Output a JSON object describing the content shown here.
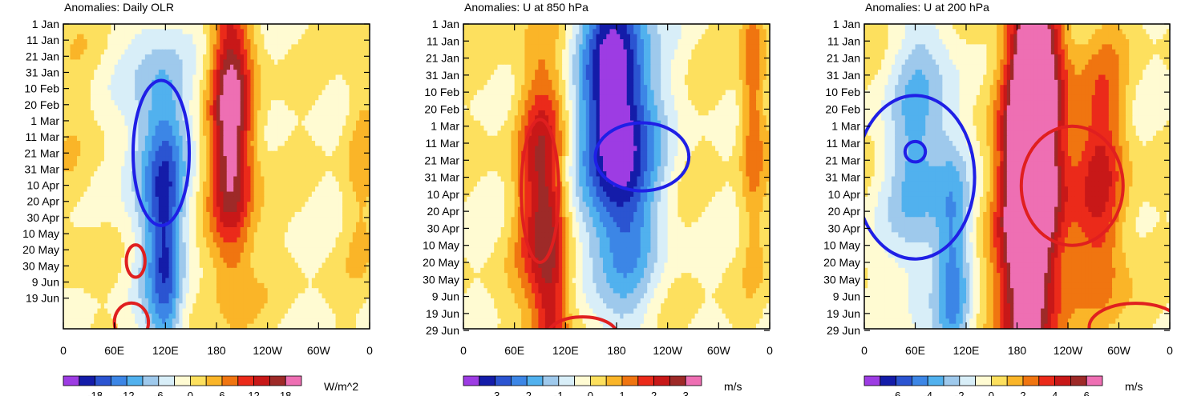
{
  "chart_data": [
    {
      "type": "heatmap",
      "title": "Anomalies: Daily OLR",
      "units": "W/m^2",
      "y_ticks": [
        "1 Jan",
        "11 Jan",
        "21 Jan",
        "31 Jan",
        "10 Feb",
        "20 Feb",
        "1 Mar",
        "11 Mar",
        "21 Mar",
        "31 Mar",
        "10 Apr",
        "20 Apr",
        "30 Apr",
        "10 May",
        "20 May",
        "30 May",
        "9 Jun",
        "19 Jun"
      ],
      "x_ticks": [
        "0",
        "60E",
        "120E",
        "180",
        "120W",
        "60W",
        "0"
      ],
      "xlim": [
        0,
        360
      ],
      "ylim_days": [
        0,
        189
      ],
      "colorbar_labels": [
        "-18",
        "-12",
        "-6",
        "0",
        "6",
        "12",
        "18"
      ],
      "colorbar_levels": [
        -21,
        -18,
        -15,
        -12,
        -9,
        -6,
        -3,
        0,
        3,
        6,
        9,
        12,
        15,
        18,
        21
      ],
      "features": [
        {
          "lon": 200,
          "day": 80,
          "width": 28,
          "value": 13
        },
        {
          "lon": 195,
          "day": 45,
          "width": 20,
          "value": 9
        },
        {
          "lon": 110,
          "day": 80,
          "width": 38,
          "value": -11
        },
        {
          "lon": 120,
          "day": 155,
          "width": 20,
          "value": -12
        },
        {
          "lon": 350,
          "day": 70,
          "width": 20,
          "value": 4
        },
        {
          "lon": 20,
          "day": 90,
          "width": 30,
          "value": 2
        }
      ],
      "contours": [
        {
          "color": "#1f1fe6",
          "lon": 115,
          "day": 80,
          "lon_radius": 33,
          "day_radius": 45
        },
        {
          "color": "#e01f1f",
          "lon": 85,
          "day": 147,
          "lon_radius": 11,
          "day_radius": 10
        },
        {
          "color": "#e01f1f",
          "lon": 80,
          "day": 185,
          "lon_radius": 20,
          "day_radius": 12
        }
      ]
    },
    {
      "type": "heatmap",
      "title": "Anomalies: U at 850 hPa",
      "units": "m/s",
      "y_ticks": [
        "1 Jan",
        "11 Jan",
        "21 Jan",
        "31 Jan",
        "10 Feb",
        "20 Feb",
        "1 Mar",
        "11 Mar",
        "21 Mar",
        "31 Mar",
        "10 Apr",
        "20 Apr",
        "30 Apr",
        "10 May",
        "20 May",
        "30 May",
        "9 Jun",
        "19 Jun",
        "29 Jun"
      ],
      "x_ticks": [
        "0",
        "60E",
        "120E",
        "180",
        "120W",
        "60W",
        "0"
      ],
      "xlim": [
        0,
        360
      ],
      "ylim_days": [
        0,
        179
      ],
      "colorbar_labels": [
        "-3",
        "-2",
        "-1",
        "0",
        "1",
        "2",
        "3"
      ],
      "colorbar_levels": [
        -3.5,
        -3,
        -2.5,
        -2,
        -1.5,
        -1,
        -0.5,
        0,
        0.5,
        1,
        1.5,
        2,
        2.5,
        3,
        3.5
      ],
      "features": [
        {
          "lon": 185,
          "day": 80,
          "width": 45,
          "value": -2.8
        },
        {
          "lon": 175,
          "day": 20,
          "width": 40,
          "value": -2.2
        },
        {
          "lon": 90,
          "day": 95,
          "width": 28,
          "value": 2.2
        },
        {
          "lon": 105,
          "day": 175,
          "width": 20,
          "value": 1.8
        },
        {
          "lon": 340,
          "day": 40,
          "width": 15,
          "value": 1.5
        }
      ],
      "contours": [
        {
          "color": "#1f1fe6",
          "lon": 210,
          "day": 78,
          "lon_radius": 55,
          "day_radius": 20
        },
        {
          "color": "#e01f1f",
          "lon": 90,
          "day": 98,
          "lon_radius": 22,
          "day_radius": 42
        },
        {
          "color": "#e01f1f",
          "lon": 140,
          "day": 182,
          "lon_radius": 40,
          "day_radius": 10
        }
      ]
    },
    {
      "type": "heatmap",
      "title": "Anomalies: U at 200 hPa",
      "units": "m/s",
      "y_ticks": [
        "1 Jan",
        "11 Jan",
        "21 Jan",
        "31 Jan",
        "10 Feb",
        "20 Feb",
        "1 Mar",
        "11 Mar",
        "21 Mar",
        "31 Mar",
        "10 Apr",
        "20 Apr",
        "30 Apr",
        "10 May",
        "20 May",
        "30 May",
        "9 Jun",
        "19 Jun",
        "29 Jun"
      ],
      "x_ticks": [
        "0",
        "60E",
        "120E",
        "180",
        "120W",
        "60W",
        "0"
      ],
      "xlim": [
        0,
        360
      ],
      "ylim_days": [
        0,
        179
      ],
      "colorbar_labels": [
        "-6",
        "-4",
        "-2",
        "0",
        "2",
        "4",
        "6"
      ],
      "colorbar_levels": [
        -7,
        -6,
        -5,
        -4,
        -3,
        -2,
        -1,
        0,
        1,
        2,
        3,
        4,
        5,
        6,
        7
      ],
      "features": [
        {
          "lon": 200,
          "day": 80,
          "width": 40,
          "value": 6.5
        },
        {
          "lon": 200,
          "day": 25,
          "width": 28,
          "value": 6
        },
        {
          "lon": 190,
          "day": 160,
          "width": 30,
          "value": 5.5
        },
        {
          "lon": 280,
          "day": 95,
          "width": 30,
          "value": 4
        },
        {
          "lon": 65,
          "day": 80,
          "width": 38,
          "value": -3.5
        },
        {
          "lon": 105,
          "day": 150,
          "width": 20,
          "value": -3.5
        }
      ],
      "contours": [
        {
          "color": "#1f1fe6",
          "lon": 60,
          "day": 90,
          "lon_radius": 70,
          "day_radius": 48
        },
        {
          "color": "#1f1fe6",
          "lon": 60,
          "day": 75,
          "lon_radius": 12,
          "day_radius": 6
        },
        {
          "color": "#e01f1f",
          "lon": 245,
          "day": 95,
          "lon_radius": 60,
          "day_radius": 35
        },
        {
          "color": "#e01f1f",
          "lon": 320,
          "day": 178,
          "lon_radius": 55,
          "day_radius": 14
        }
      ]
    }
  ],
  "colormap": [
    "#9d3ce3",
    "#141ca9",
    "#2b54d1",
    "#3c86e6",
    "#51b1ee",
    "#9ec9ec",
    "#d8eef8",
    "#fffbd2",
    "#fde05e",
    "#fab528",
    "#f07510",
    "#eb2a1a",
    "#c81818",
    "#9e2a28",
    "#ee6fb3"
  ]
}
